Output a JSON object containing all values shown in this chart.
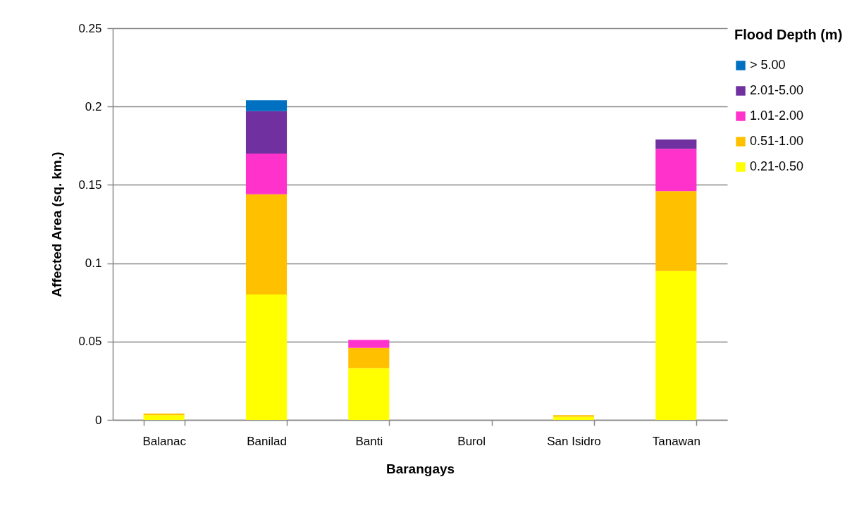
{
  "chart_data": {
    "type": "bar",
    "stacked": true,
    "xlabel": "Barangays",
    "ylabel": "Affected Area (sq. km.)",
    "legend_title": "Flood Depth (m)",
    "legend": "right",
    "grid": "y",
    "categories": [
      "Balanac",
      "Banilad",
      "Banti",
      "Burol",
      "San Isidro",
      "Tanawan"
    ],
    "ylim": [
      0,
      0.25
    ],
    "yticks": [
      0,
      0.05,
      0.1,
      0.15,
      0.2,
      0.25
    ],
    "series": [
      {
        "name": "0.21-0.50",
        "color": "#ffff00",
        "values": [
          0.003,
          0.08,
          0.033,
          0,
          0.002,
          0.095
        ]
      },
      {
        "name": "0.51-1.00",
        "color": "#ffc000",
        "values": [
          0.001,
          0.064,
          0.013,
          0,
          0.001,
          0.051
        ]
      },
      {
        "name": "1.01-2.00",
        "color": "#ff33cc",
        "values": [
          0,
          0.026,
          0.005,
          0,
          0,
          0.027
        ]
      },
      {
        "name": "2.01-5.00",
        "color": "#7030a0",
        "values": [
          0,
          0.027,
          0,
          0,
          0,
          0.006
        ]
      },
      {
        "name": "> 5.00",
        "color": "#0070c0",
        "values": [
          0,
          0.007,
          0,
          0,
          0,
          0
        ]
      }
    ]
  }
}
